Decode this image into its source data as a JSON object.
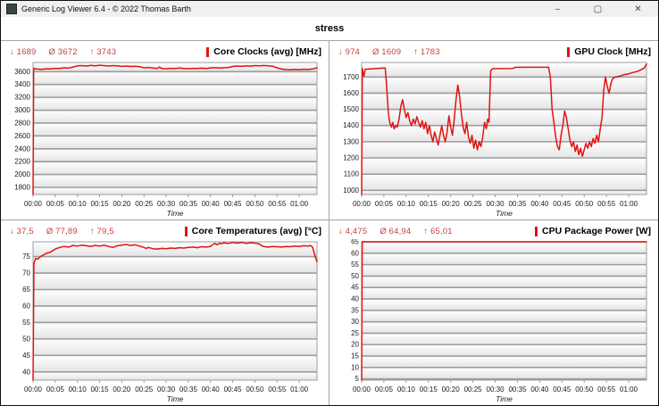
{
  "window": {
    "title": "Generic Log Viewer 6.4 - © 2022 Thomas Barth",
    "minimize": "–",
    "maximize": "▢",
    "close": "✕"
  },
  "tab_label": "stress",
  "symbols": {
    "min": "↓",
    "avg": "Ø",
    "max": "↑"
  },
  "colors": {
    "series": "#e01412",
    "accent_bar": "#e01412",
    "stats_text": "#c74040",
    "grid_line": "#9c9c9c"
  },
  "chart_data": [
    {
      "type": "line",
      "title": "Core Clocks (avg) [MHz]",
      "stats": {
        "min": "1689",
        "avg": "3672",
        "max": "3743"
      },
      "xlabel": "Time",
      "x_ticks": [
        "00:00",
        "00:05",
        "00:10",
        "00:15",
        "00:20",
        "00:25",
        "00:30",
        "00:35",
        "00:40",
        "00:45",
        "00:50",
        "00:55",
        "01:00"
      ],
      "x_tick_minutes": [
        0,
        5,
        10,
        15,
        20,
        25,
        30,
        35,
        40,
        45,
        50,
        55,
        60
      ],
      "xlim": [
        0,
        64
      ],
      "ylim": [
        1689,
        3743
      ],
      "y_ticks": [
        1800,
        2000,
        2200,
        2400,
        2600,
        2800,
        3000,
        3200,
        3400,
        3600
      ],
      "points": [
        [
          0,
          1689
        ],
        [
          0.15,
          3648
        ],
        [
          1,
          3640
        ],
        [
          2,
          3636
        ],
        [
          3,
          3645
        ],
        [
          4,
          3642
        ],
        [
          5,
          3652
        ],
        [
          6,
          3648
        ],
        [
          7,
          3660
        ],
        [
          8,
          3655
        ],
        [
          9,
          3672
        ],
        [
          10,
          3690
        ],
        [
          11,
          3695
        ],
        [
          12,
          3688
        ],
        [
          13,
          3698
        ],
        [
          14,
          3692
        ],
        [
          15,
          3700
        ],
        [
          16,
          3694
        ],
        [
          17,
          3688
        ],
        [
          18,
          3695
        ],
        [
          19,
          3690
        ],
        [
          20,
          3682
        ],
        [
          21,
          3688
        ],
        [
          22,
          3680
        ],
        [
          23,
          3685
        ],
        [
          24,
          3678
        ],
        [
          25,
          3660
        ],
        [
          26,
          3665
        ],
        [
          27,
          3656
        ],
        [
          28,
          3648
        ],
        [
          28.5,
          3672
        ],
        [
          29,
          3650
        ],
        [
          30,
          3645
        ],
        [
          31,
          3652
        ],
        [
          32,
          3648
        ],
        [
          33,
          3655
        ],
        [
          34,
          3650
        ],
        [
          35,
          3646
        ],
        [
          36,
          3652
        ],
        [
          37,
          3648
        ],
        [
          38,
          3654
        ],
        [
          39,
          3650
        ],
        [
          40,
          3658
        ],
        [
          41,
          3662
        ],
        [
          42,
          3655
        ],
        [
          43,
          3660
        ],
        [
          44,
          3665
        ],
        [
          45,
          3680
        ],
        [
          46,
          3688
        ],
        [
          47,
          3682
        ],
        [
          48,
          3692
        ],
        [
          49,
          3686
        ],
        [
          50,
          3694
        ],
        [
          51,
          3690
        ],
        [
          52,
          3696
        ],
        [
          53,
          3690
        ],
        [
          54,
          3685
        ],
        [
          55,
          3660
        ],
        [
          56,
          3640
        ],
        [
          57,
          3632
        ],
        [
          58,
          3628
        ],
        [
          59,
          3636
        ],
        [
          60,
          3630
        ],
        [
          61,
          3638
        ],
        [
          62,
          3634
        ],
        [
          63,
          3642
        ],
        [
          63.5,
          3650
        ],
        [
          64,
          3660
        ]
      ]
    },
    {
      "type": "line",
      "title": "GPU Clock [MHz]",
      "stats": {
        "min": "974",
        "avg": "1609",
        "max": "1783"
      },
      "xlabel": "Time",
      "x_ticks": [
        "00:00",
        "00:05",
        "00:10",
        "00:15",
        "00:20",
        "00:25",
        "00:30",
        "00:35",
        "00:40",
        "00:45",
        "00:50",
        "00:55",
        "01:00"
      ],
      "x_tick_minutes": [
        0,
        5,
        10,
        15,
        20,
        25,
        30,
        35,
        40,
        45,
        50,
        55,
        60
      ],
      "xlim": [
        0,
        64
      ],
      "ylim": [
        974,
        1790
      ],
      "y_ticks": [
        1000,
        1100,
        1200,
        1300,
        1400,
        1500,
        1600,
        1700
      ],
      "points": [
        [
          0,
          974
        ],
        [
          0.15,
          1752
        ],
        [
          0.5,
          1705
        ],
        [
          0.8,
          1748
        ],
        [
          5,
          1755
        ],
        [
          5.3,
          1756
        ],
        [
          5.6,
          1650
        ],
        [
          6,
          1480
        ],
        [
          6.3,
          1420
        ],
        [
          6.7,
          1390
        ],
        [
          7,
          1420
        ],
        [
          7.3,
          1380
        ],
        [
          7.7,
          1400
        ],
        [
          8,
          1390
        ],
        [
          8.4,
          1440
        ],
        [
          8.8,
          1520
        ],
        [
          9.2,
          1560
        ],
        [
          9.6,
          1500
        ],
        [
          10,
          1450
        ],
        [
          10.4,
          1480
        ],
        [
          10.8,
          1430
        ],
        [
          11.2,
          1400
        ],
        [
          11.6,
          1440
        ],
        [
          12,
          1410
        ],
        [
          12.4,
          1455
        ],
        [
          12.8,
          1420
        ],
        [
          13.2,
          1390
        ],
        [
          13.6,
          1430
        ],
        [
          14,
          1380
        ],
        [
          14.4,
          1420
        ],
        [
          14.8,
          1350
        ],
        [
          15.2,
          1400
        ],
        [
          15.6,
          1340
        ],
        [
          16,
          1300
        ],
        [
          16.4,
          1360
        ],
        [
          16.8,
          1320
        ],
        [
          17.2,
          1280
        ],
        [
          17.6,
          1340
        ],
        [
          18,
          1400
        ],
        [
          18.4,
          1340
        ],
        [
          18.8,
          1300
        ],
        [
          19.2,
          1360
        ],
        [
          19.6,
          1460
        ],
        [
          20,
          1390
        ],
        [
          20.4,
          1340
        ],
        [
          20.8,
          1440
        ],
        [
          21.2,
          1560
        ],
        [
          21.6,
          1650
        ],
        [
          22,
          1580
        ],
        [
          22.4,
          1480
        ],
        [
          22.8,
          1390
        ],
        [
          23.2,
          1350
        ],
        [
          23.6,
          1420
        ],
        [
          24,
          1330
        ],
        [
          24.4,
          1290
        ],
        [
          24.8,
          1340
        ],
        [
          25.2,
          1260
        ],
        [
          25.6,
          1310
        ],
        [
          26,
          1250
        ],
        [
          26.4,
          1300
        ],
        [
          26.8,
          1270
        ],
        [
          27.2,
          1330
        ],
        [
          27.6,
          1420
        ],
        [
          28,
          1380
        ],
        [
          28.3,
          1440
        ],
        [
          28.6,
          1420
        ],
        [
          29,
          1740
        ],
        [
          29.5,
          1752
        ],
        [
          34,
          1753
        ],
        [
          34.5,
          1760
        ],
        [
          42,
          1760
        ],
        [
          42.4,
          1700
        ],
        [
          42.8,
          1500
        ],
        [
          43.2,
          1420
        ],
        [
          43.6,
          1330
        ],
        [
          44,
          1270
        ],
        [
          44.4,
          1250
        ],
        [
          44.8,
          1340
        ],
        [
          45.2,
          1400
        ],
        [
          45.6,
          1490
        ],
        [
          46,
          1450
        ],
        [
          46.4,
          1380
        ],
        [
          46.8,
          1310
        ],
        [
          47.2,
          1270
        ],
        [
          47.6,
          1300
        ],
        [
          48,
          1240
        ],
        [
          48.4,
          1280
        ],
        [
          48.8,
          1220
        ],
        [
          49.2,
          1260
        ],
        [
          49.6,
          1210
        ],
        [
          50,
          1250
        ],
        [
          50.4,
          1290
        ],
        [
          50.8,
          1260
        ],
        [
          51.2,
          1300
        ],
        [
          51.6,
          1270
        ],
        [
          52,
          1320
        ],
        [
          52.4,
          1290
        ],
        [
          52.8,
          1340
        ],
        [
          53.2,
          1300
        ],
        [
          53.6,
          1380
        ],
        [
          54,
          1450
        ],
        [
          54.4,
          1620
        ],
        [
          54.8,
          1700
        ],
        [
          55.2,
          1640
        ],
        [
          55.6,
          1600
        ],
        [
          56,
          1660
        ],
        [
          56.4,
          1690
        ],
        [
          57,
          1700
        ],
        [
          58,
          1705
        ],
        [
          59,
          1715
        ],
        [
          60,
          1720
        ],
        [
          61,
          1728
        ],
        [
          62,
          1735
        ],
        [
          63,
          1748
        ],
        [
          63.5,
          1755
        ],
        [
          64,
          1780
        ]
      ]
    },
    {
      "type": "line",
      "title": "Core Temperatures (avg) [°C]",
      "stats": {
        "min": "37,5",
        "avg": "77,89",
        "max": "79,5"
      },
      "xlabel": "Time",
      "x_ticks": [
        "00:00",
        "00:05",
        "00:10",
        "00:15",
        "00:20",
        "00:25",
        "00:30",
        "00:35",
        "00:40",
        "00:45",
        "00:50",
        "00:55",
        "01:00"
      ],
      "x_tick_minutes": [
        0,
        5,
        10,
        15,
        20,
        25,
        30,
        35,
        40,
        45,
        50,
        55,
        60
      ],
      "xlim": [
        0,
        64
      ],
      "ylim": [
        37.5,
        79.5
      ],
      "y_ticks": [
        40,
        45,
        50,
        55,
        60,
        65,
        70,
        75
      ],
      "points": [
        [
          0,
          37.5
        ],
        [
          0.2,
          73.0
        ],
        [
          0.6,
          74.5
        ],
        [
          1,
          74.2
        ],
        [
          1.5,
          74.8
        ],
        [
          2,
          75.3
        ],
        [
          2.5,
          75.6
        ],
        [
          3,
          76.0
        ],
        [
          4,
          76.4
        ],
        [
          5,
          77.3
        ],
        [
          6,
          77.8
        ],
        [
          7,
          78.1
        ],
        [
          8,
          77.9
        ],
        [
          9,
          78.4
        ],
        [
          10,
          78.2
        ],
        [
          11,
          78.5
        ],
        [
          12,
          78.3
        ],
        [
          13,
          78.1
        ],
        [
          14,
          78.4
        ],
        [
          15,
          78.2
        ],
        [
          16,
          78.5
        ],
        [
          17,
          78.1
        ],
        [
          18,
          77.8
        ],
        [
          19,
          78.3
        ],
        [
          20,
          78.5
        ],
        [
          21,
          78.7
        ],
        [
          22,
          78.4
        ],
        [
          23,
          78.6
        ],
        [
          24,
          78.2
        ],
        [
          25,
          77.8
        ],
        [
          25.5,
          77.5
        ],
        [
          26,
          77.8
        ],
        [
          27,
          77.4
        ],
        [
          28,
          77.3
        ],
        [
          29,
          77.5
        ],
        [
          30,
          77.4
        ],
        [
          31,
          77.6
        ],
        [
          32,
          77.5
        ],
        [
          33,
          77.7
        ],
        [
          34,
          77.6
        ],
        [
          35,
          77.8
        ],
        [
          36,
          77.9
        ],
        [
          37,
          77.7
        ],
        [
          38,
          78.0
        ],
        [
          39,
          77.9
        ],
        [
          40,
          78.1
        ],
        [
          40.5,
          78.7
        ],
        [
          41,
          79.0
        ],
        [
          41.5,
          78.6
        ],
        [
          42,
          79.1
        ],
        [
          42.5,
          78.9
        ],
        [
          43,
          79.2
        ],
        [
          44,
          79.0
        ],
        [
          45,
          79.3
        ],
        [
          46,
          79.1
        ],
        [
          47,
          79.3
        ],
        [
          48,
          79.0
        ],
        [
          49,
          79.2
        ],
        [
          50,
          79.1
        ],
        [
          51,
          78.9
        ],
        [
          51.5,
          78.3
        ],
        [
          52,
          78.1
        ],
        [
          53,
          77.9
        ],
        [
          54,
          78.1
        ],
        [
          55,
          78.0
        ],
        [
          56,
          77.9
        ],
        [
          57,
          78.1
        ],
        [
          58,
          78.0
        ],
        [
          59,
          78.2
        ],
        [
          60,
          78.1
        ],
        [
          61,
          78.3
        ],
        [
          62,
          78.2
        ],
        [
          62.5,
          78.4
        ],
        [
          63,
          77.9
        ],
        [
          63.5,
          75.5
        ],
        [
          64,
          73.4
        ]
      ]
    },
    {
      "type": "line",
      "title": "CPU Package Power [W]",
      "stats": {
        "min": "4,475",
        "avg": "64,94",
        "max": "65,01"
      },
      "xlabel": "Time",
      "x_ticks": [
        "00:00",
        "00:05",
        "00:10",
        "00:15",
        "00:20",
        "00:25",
        "00:30",
        "00:35",
        "00:40",
        "00:45",
        "00:50",
        "00:55",
        "01:00"
      ],
      "x_tick_minutes": [
        0,
        5,
        10,
        15,
        20,
        25,
        30,
        35,
        40,
        45,
        50,
        55,
        60
      ],
      "xlim": [
        0,
        64
      ],
      "ylim": [
        4.475,
        65.01
      ],
      "y_ticks": [
        5,
        10,
        15,
        20,
        25,
        30,
        35,
        40,
        45,
        50,
        55,
        60,
        65
      ],
      "points": [
        [
          0,
          4.475
        ],
        [
          0.12,
          65
        ],
        [
          64,
          65
        ]
      ]
    }
  ]
}
